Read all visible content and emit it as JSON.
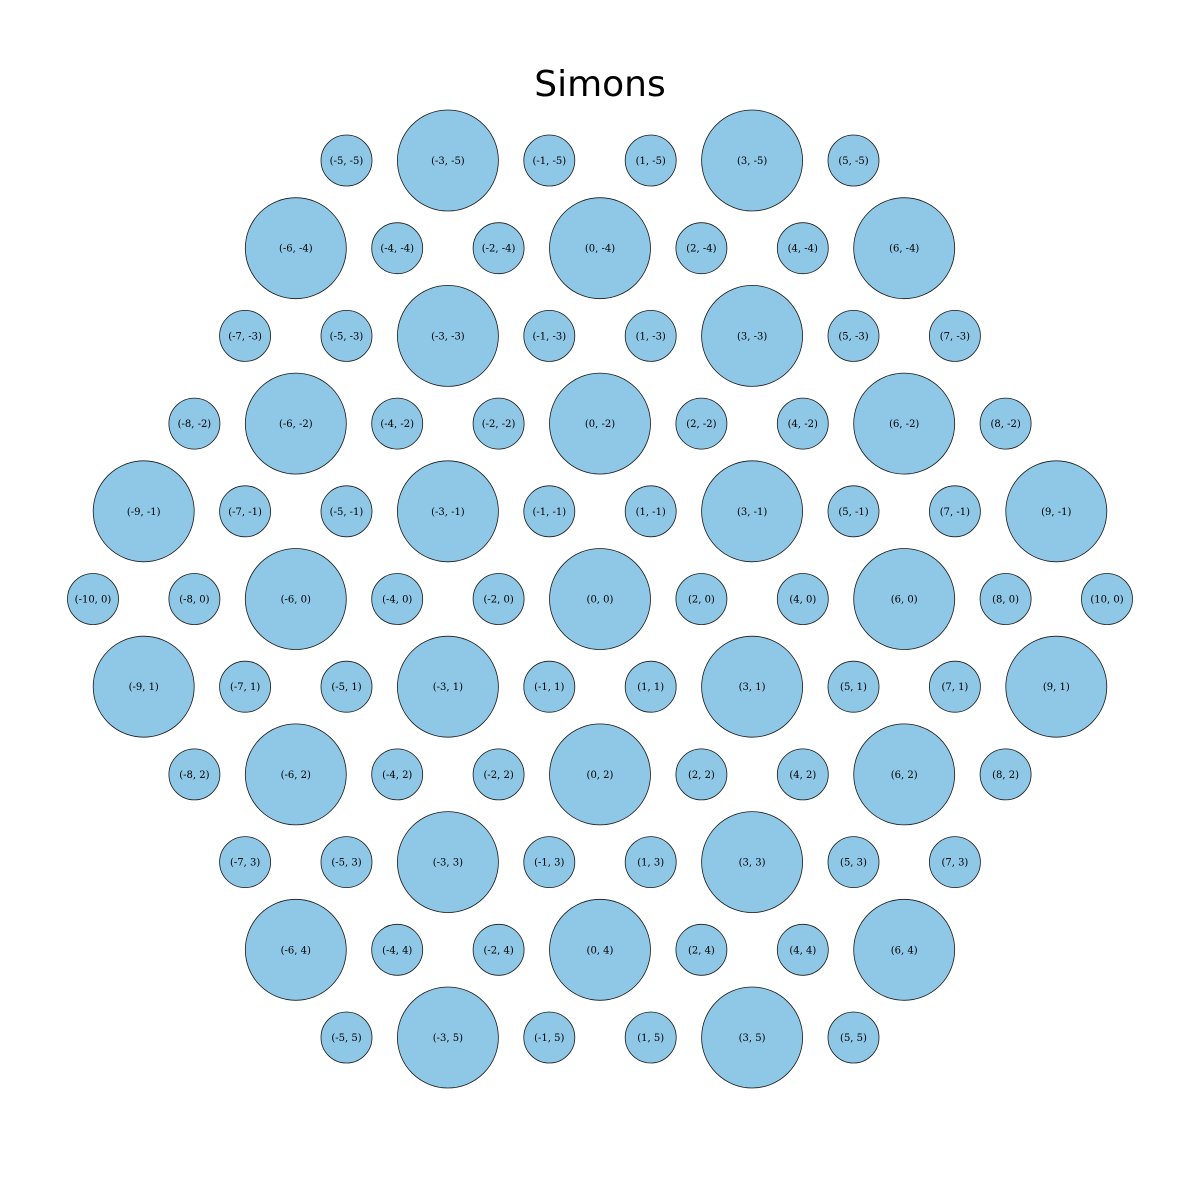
{
  "title": "Simons",
  "colors": {
    "fill": "#8fc7e6",
    "stroke": "#1a1a1a"
  },
  "nodes": [
    {
      "x": -5,
      "y": -5,
      "label": "(-5, -5)",
      "size": "small"
    },
    {
      "x": -3,
      "y": -5,
      "label": "(-3, -5)",
      "size": "large"
    },
    {
      "x": -1,
      "y": -5,
      "label": "(-1, -5)",
      "size": "small"
    },
    {
      "x": 1,
      "y": -5,
      "label": "(1, -5)",
      "size": "small"
    },
    {
      "x": 3,
      "y": -5,
      "label": "(3, -5)",
      "size": "large"
    },
    {
      "x": 5,
      "y": -5,
      "label": "(5, -5)",
      "size": "small"
    },
    {
      "x": -6,
      "y": -4,
      "label": "(-6, -4)",
      "size": "large"
    },
    {
      "x": -4,
      "y": -4,
      "label": "(-4, -4)",
      "size": "small"
    },
    {
      "x": -2,
      "y": -4,
      "label": "(-2, -4)",
      "size": "small"
    },
    {
      "x": 0,
      "y": -4,
      "label": "(0, -4)",
      "size": "large"
    },
    {
      "x": 2,
      "y": -4,
      "label": "(2, -4)",
      "size": "small"
    },
    {
      "x": 4,
      "y": -4,
      "label": "(4, -4)",
      "size": "small"
    },
    {
      "x": 6,
      "y": -4,
      "label": "(6, -4)",
      "size": "large"
    },
    {
      "x": -7,
      "y": -3,
      "label": "(-7, -3)",
      "size": "small"
    },
    {
      "x": -5,
      "y": -3,
      "label": "(-5, -3)",
      "size": "small"
    },
    {
      "x": -3,
      "y": -3,
      "label": "(-3, -3)",
      "size": "large"
    },
    {
      "x": -1,
      "y": -3,
      "label": "(-1, -3)",
      "size": "small"
    },
    {
      "x": 1,
      "y": -3,
      "label": "(1, -3)",
      "size": "small"
    },
    {
      "x": 3,
      "y": -3,
      "label": "(3, -3)",
      "size": "large"
    },
    {
      "x": 5,
      "y": -3,
      "label": "(5, -3)",
      "size": "small"
    },
    {
      "x": 7,
      "y": -3,
      "label": "(7, -3)",
      "size": "small"
    },
    {
      "x": -8,
      "y": -2,
      "label": "(-8, -2)",
      "size": "small"
    },
    {
      "x": -6,
      "y": -2,
      "label": "(-6, -2)",
      "size": "large"
    },
    {
      "x": -4,
      "y": -2,
      "label": "(-4, -2)",
      "size": "small"
    },
    {
      "x": -2,
      "y": -2,
      "label": "(-2, -2)",
      "size": "small"
    },
    {
      "x": 0,
      "y": -2,
      "label": "(0, -2)",
      "size": "large"
    },
    {
      "x": 2,
      "y": -2,
      "label": "(2, -2)",
      "size": "small"
    },
    {
      "x": 4,
      "y": -2,
      "label": "(4, -2)",
      "size": "small"
    },
    {
      "x": 6,
      "y": -2,
      "label": "(6, -2)",
      "size": "large"
    },
    {
      "x": 8,
      "y": -2,
      "label": "(8, -2)",
      "size": "small"
    },
    {
      "x": -9,
      "y": -1,
      "label": "(-9, -1)",
      "size": "large"
    },
    {
      "x": -7,
      "y": -1,
      "label": "(-7, -1)",
      "size": "small"
    },
    {
      "x": -5,
      "y": -1,
      "label": "(-5, -1)",
      "size": "small"
    },
    {
      "x": -3,
      "y": -1,
      "label": "(-3, -1)",
      "size": "large"
    },
    {
      "x": -1,
      "y": -1,
      "label": "(-1, -1)",
      "size": "small"
    },
    {
      "x": 1,
      "y": -1,
      "label": "(1, -1)",
      "size": "small"
    },
    {
      "x": 3,
      "y": -1,
      "label": "(3, -1)",
      "size": "large"
    },
    {
      "x": 5,
      "y": -1,
      "label": "(5, -1)",
      "size": "small"
    },
    {
      "x": 7,
      "y": -1,
      "label": "(7, -1)",
      "size": "small"
    },
    {
      "x": 9,
      "y": -1,
      "label": "(9, -1)",
      "size": "large"
    },
    {
      "x": -10,
      "y": 0,
      "label": "(-10, 0)",
      "size": "small"
    },
    {
      "x": -8,
      "y": 0,
      "label": "(-8, 0)",
      "size": "small"
    },
    {
      "x": -6,
      "y": 0,
      "label": "(-6, 0)",
      "size": "large"
    },
    {
      "x": -4,
      "y": 0,
      "label": "(-4, 0)",
      "size": "small"
    },
    {
      "x": -2,
      "y": 0,
      "label": "(-2, 0)",
      "size": "small"
    },
    {
      "x": 0,
      "y": 0,
      "label": "(0, 0)",
      "size": "large"
    },
    {
      "x": 2,
      "y": 0,
      "label": "(2, 0)",
      "size": "small"
    },
    {
      "x": 4,
      "y": 0,
      "label": "(4, 0)",
      "size": "small"
    },
    {
      "x": 6,
      "y": 0,
      "label": "(6, 0)",
      "size": "large"
    },
    {
      "x": 8,
      "y": 0,
      "label": "(8, 0)",
      "size": "small"
    },
    {
      "x": 10,
      "y": 0,
      "label": "(10, 0)",
      "size": "small"
    },
    {
      "x": -9,
      "y": 1,
      "label": "(-9, 1)",
      "size": "large"
    },
    {
      "x": -7,
      "y": 1,
      "label": "(-7, 1)",
      "size": "small"
    },
    {
      "x": -5,
      "y": 1,
      "label": "(-5, 1)",
      "size": "small"
    },
    {
      "x": -3,
      "y": 1,
      "label": "(-3, 1)",
      "size": "large"
    },
    {
      "x": -1,
      "y": 1,
      "label": "(-1, 1)",
      "size": "small"
    },
    {
      "x": 1,
      "y": 1,
      "label": "(1, 1)",
      "size": "small"
    },
    {
      "x": 3,
      "y": 1,
      "label": "(3, 1)",
      "size": "large"
    },
    {
      "x": 5,
      "y": 1,
      "label": "(5, 1)",
      "size": "small"
    },
    {
      "x": 7,
      "y": 1,
      "label": "(7, 1)",
      "size": "small"
    },
    {
      "x": 9,
      "y": 1,
      "label": "(9, 1)",
      "size": "large"
    },
    {
      "x": -8,
      "y": 2,
      "label": "(-8, 2)",
      "size": "small"
    },
    {
      "x": -6,
      "y": 2,
      "label": "(-6, 2)",
      "size": "large"
    },
    {
      "x": -4,
      "y": 2,
      "label": "(-4, 2)",
      "size": "small"
    },
    {
      "x": -2,
      "y": 2,
      "label": "(-2, 2)",
      "size": "small"
    },
    {
      "x": 0,
      "y": 2,
      "label": "(0, 2)",
      "size": "large"
    },
    {
      "x": 2,
      "y": 2,
      "label": "(2, 2)",
      "size": "small"
    },
    {
      "x": 4,
      "y": 2,
      "label": "(4, 2)",
      "size": "small"
    },
    {
      "x": 6,
      "y": 2,
      "label": "(6, 2)",
      "size": "large"
    },
    {
      "x": 8,
      "y": 2,
      "label": "(8, 2)",
      "size": "small"
    },
    {
      "x": -7,
      "y": 3,
      "label": "(-7, 3)",
      "size": "small"
    },
    {
      "x": -5,
      "y": 3,
      "label": "(-5, 3)",
      "size": "small"
    },
    {
      "x": -3,
      "y": 3,
      "label": "(-3, 3)",
      "size": "large"
    },
    {
      "x": -1,
      "y": 3,
      "label": "(-1, 3)",
      "size": "small"
    },
    {
      "x": 1,
      "y": 3,
      "label": "(1, 3)",
      "size": "small"
    },
    {
      "x": 3,
      "y": 3,
      "label": "(3, 3)",
      "size": "large"
    },
    {
      "x": 5,
      "y": 3,
      "label": "(5, 3)",
      "size": "small"
    },
    {
      "x": 7,
      "y": 3,
      "label": "(7, 3)",
      "size": "small"
    },
    {
      "x": -6,
      "y": 4,
      "label": "(-6, 4)",
      "size": "large"
    },
    {
      "x": -4,
      "y": 4,
      "label": "(-4, 4)",
      "size": "small"
    },
    {
      "x": -2,
      "y": 4,
      "label": "(-2, 4)",
      "size": "small"
    },
    {
      "x": 0,
      "y": 4,
      "label": "(0, 4)",
      "size": "large"
    },
    {
      "x": 2,
      "y": 4,
      "label": "(2, 4)",
      "size": "small"
    },
    {
      "x": 4,
      "y": 4,
      "label": "(4, 4)",
      "size": "small"
    },
    {
      "x": 6,
      "y": 4,
      "label": "(6, 4)",
      "size": "large"
    },
    {
      "x": -5,
      "y": 5,
      "label": "(-5, 5)",
      "size": "small"
    },
    {
      "x": -3,
      "y": 5,
      "label": "(-3, 5)",
      "size": "large"
    },
    {
      "x": -1,
      "y": 5,
      "label": "(-1, 5)",
      "size": "small"
    },
    {
      "x": 1,
      "y": 5,
      "label": "(1, 5)",
      "size": "small"
    },
    {
      "x": 3,
      "y": 5,
      "label": "(3, 5)",
      "size": "large"
    },
    {
      "x": 5,
      "y": 5,
      "label": "(5, 5)",
      "size": "small"
    }
  ]
}
